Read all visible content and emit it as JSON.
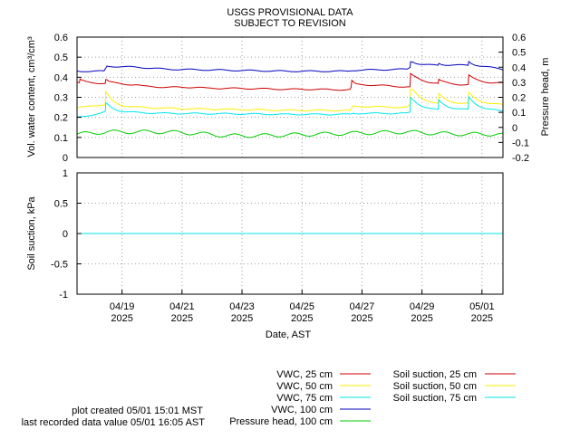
{
  "header": {
    "line1": "USGS PROVISIONAL DATA",
    "line2": "SUBJECT TO REVISION"
  },
  "footer": {
    "created": "plot created 05/01 15:01 MST",
    "last_value": "last recorded data value 05/01 16:05 AST"
  },
  "colors": {
    "vwc25": "#cc0000",
    "vwc50": "#ffee00",
    "vwc75": "#00e5ee",
    "vwc100": "#0000bb",
    "pressure": "#00cc00",
    "suction25": "#cc0000",
    "suction50": "#ffee00",
    "suction75": "#00e5ee"
  },
  "chart_data": [
    {
      "type": "line",
      "ylabel": "Vol. water content, cm³/cm³",
      "y2label": "Pressure head, m",
      "ylim": [
        0,
        0.6
      ],
      "y_ticks": [
        "0",
        "0.1",
        "0.2",
        "0.3",
        "0.4",
        "0.5",
        "0.6"
      ],
      "y2lim": [
        -0.2,
        0.6
      ],
      "y2_ticks": [
        "-0.2",
        "-0.1",
        "0",
        "0.1",
        "0.2",
        "0.3",
        "0.4",
        "0.5",
        "0.6"
      ],
      "x_range_days": [
        "2025-04-17",
        "2025-05-01 16:05"
      ],
      "grid": true,
      "series": [
        {
          "name": "VWC, 25 cm",
          "axis": "left",
          "base": [
            [
              0,
              0.375
            ],
            [
              0.12,
              0.37
            ],
            [
              1,
              0.37
            ],
            [
              1.05,
              0.365
            ],
            [
              2,
              0.362
            ],
            [
              2.2,
              0.355
            ],
            [
              3,
              0.35
            ],
            [
              4,
              0.35
            ],
            [
              4.3,
              0.345
            ],
            [
              5,
              0.345
            ],
            [
              6,
              0.343
            ],
            [
              7,
              0.34
            ],
            [
              8,
              0.34
            ],
            [
              8.5,
              0.338
            ],
            [
              9,
              0.338
            ],
            [
              9.1,
              0.338
            ],
            [
              9.2,
              0.365
            ],
            [
              10,
              0.36
            ],
            [
              11,
              0.352
            ],
            [
              11.15,
              0.35
            ],
            [
              12,
              0.36
            ],
            [
              12.1,
              0.355
            ],
            [
              13,
              0.36
            ],
            [
              13.1,
              0.36
            ],
            [
              14,
              0.37
            ],
            [
              14.2,
              0.368
            ]
          ],
          "spikes": [
            [
              0.1,
              0.39,
              0.2
            ],
            [
              0.95,
              0.39,
              0.3
            ],
            [
              9.15,
              0.385,
              0.05
            ],
            [
              11.1,
              0.42,
              0.5
            ],
            [
              12.05,
              0.38,
              0.35
            ],
            [
              13.05,
              0.41,
              0.35
            ]
          ]
        },
        {
          "name": "VWC, 50 cm",
          "axis": "left",
          "base": [
            [
              0,
              0.245
            ],
            [
              0.5,
              0.26
            ],
            [
              1,
              0.26
            ],
            [
              1.2,
              0.255
            ],
            [
              3,
              0.245
            ],
            [
              5,
              0.24
            ],
            [
              7,
              0.235
            ],
            [
              9,
              0.235
            ],
            [
              9.1,
              0.23
            ],
            [
              9.2,
              0.255
            ],
            [
              11,
              0.25
            ],
            [
              11.2,
              0.275
            ],
            [
              12,
              0.26
            ],
            [
              13,
              0.265
            ],
            [
              14,
              0.262
            ],
            [
              14.2,
              0.26
            ]
          ],
          "spikes": [
            [
              0.95,
              0.33,
              0.25
            ],
            [
              11.1,
              0.34,
              0.4
            ],
            [
              12.05,
              0.31,
              0.35
            ],
            [
              13.05,
              0.32,
              0.35
            ]
          ]
        },
        {
          "name": "VWC, 75 cm",
          "axis": "left",
          "base": [
            [
              0,
              0.2
            ],
            [
              0.8,
              0.22
            ],
            [
              1,
              0.23
            ],
            [
              1.3,
              0.225
            ],
            [
              3,
              0.22
            ],
            [
              5,
              0.218
            ],
            [
              7,
              0.215
            ],
            [
              9,
              0.215
            ],
            [
              9.1,
              0.215
            ],
            [
              9.2,
              0.22
            ],
            [
              11,
              0.22
            ],
            [
              11.2,
              0.23
            ],
            [
              12,
              0.23
            ],
            [
              13,
              0.235
            ],
            [
              14,
              0.23
            ],
            [
              14.2,
              0.228
            ]
          ],
          "spikes": [
            [
              0.95,
              0.27,
              0.3
            ],
            [
              11.1,
              0.3,
              0.4
            ],
            [
              12.05,
              0.28,
              0.35
            ],
            [
              13.05,
              0.3,
              0.35
            ]
          ]
        },
        {
          "name": "VWC, 100 cm",
          "axis": "left",
          "base": [
            [
              0,
              0.43
            ],
            [
              0.9,
              0.43
            ],
            [
              1,
              0.455
            ],
            [
              2,
              0.45
            ],
            [
              3,
              0.44
            ],
            [
              5,
              0.435
            ],
            [
              7,
              0.43
            ],
            [
              9,
              0.43
            ],
            [
              9.2,
              0.435
            ],
            [
              11,
              0.44
            ],
            [
              11.2,
              0.46
            ],
            [
              12,
              0.46
            ],
            [
              13,
              0.46
            ],
            [
              14,
              0.445
            ],
            [
              14.2,
              0.44
            ]
          ],
          "spikes": [
            [
              11.1,
              0.48,
              0.2
            ],
            [
              12.05,
              0.47,
              0.15
            ],
            [
              13.05,
              0.48,
              0.2
            ]
          ]
        },
        {
          "name": "Pressure head, 100 cm",
          "axis": "right",
          "base": [
            [
              0,
              -0.045
            ],
            [
              1,
              -0.03
            ],
            [
              2,
              -0.03
            ],
            [
              3,
              -0.03
            ],
            [
              4,
              -0.04
            ],
            [
              5,
              -0.055
            ],
            [
              6,
              -0.055
            ],
            [
              7,
              -0.05
            ],
            [
              8,
              -0.045
            ],
            [
              9,
              -0.04
            ],
            [
              10,
              -0.035
            ],
            [
              11,
              -0.03
            ],
            [
              12,
              -0.04
            ],
            [
              13,
              -0.045
            ],
            [
              14,
              -0.045
            ],
            [
              14.2,
              -0.05
            ]
          ],
          "diurnal": 0.012
        }
      ]
    },
    {
      "type": "line",
      "ylabel": "Soil suction, kPa",
      "ylim": [
        -1,
        1
      ],
      "y_ticks": [
        "-1",
        "-0.5",
        "0",
        "0.5",
        "1"
      ],
      "xlabel": "Date, AST",
      "x_ticks": [
        {
          "day": 1.5,
          "label": "04/19",
          "year": "2025"
        },
        {
          "day": 3.5,
          "label": "04/21",
          "year": "2025"
        },
        {
          "day": 5.5,
          "label": "04/23",
          "year": "2025"
        },
        {
          "day": 7.5,
          "label": "04/25",
          "year": "2025"
        },
        {
          "day": 9.5,
          "label": "04/27",
          "year": "2025"
        },
        {
          "day": 11.5,
          "label": "04/29",
          "year": "2025"
        },
        {
          "day": 13.5,
          "label": "05/01",
          "year": "2025"
        }
      ],
      "grid": true,
      "series": [
        {
          "name": "Soil suction, 25 cm",
          "values": [
            [
              0,
              0
            ],
            [
              14.2,
              0
            ]
          ]
        },
        {
          "name": "Soil suction, 50 cm",
          "values": [
            [
              0,
              0
            ],
            [
              14.2,
              0
            ]
          ]
        },
        {
          "name": "Soil suction, 75 cm",
          "values": [
            [
              0,
              0
            ],
            [
              14.2,
              0
            ]
          ]
        }
      ]
    }
  ],
  "legend": {
    "left": [
      "VWC, 25 cm",
      "VWC, 50 cm",
      "VWC, 75 cm",
      "VWC, 100 cm",
      "Pressure head, 100 cm"
    ],
    "right": [
      "Soil suction, 25 cm",
      "Soil suction, 50 cm",
      "Soil suction, 75 cm"
    ]
  }
}
